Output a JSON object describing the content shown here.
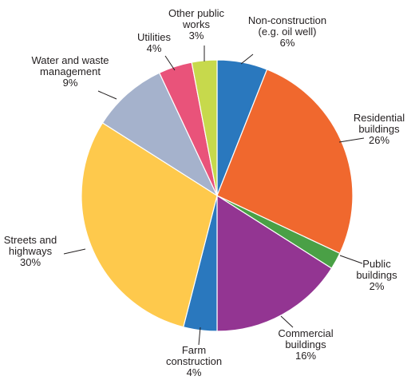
{
  "chart_data": {
    "type": "pie",
    "title": "",
    "start": "12 o'clock",
    "direction": "clockwise",
    "slices": [
      {
        "label": [
          "Non-construction",
          "(e.g. oil well)"
        ],
        "value_text": "6%",
        "value": 6,
        "color": "#2a78be"
      },
      {
        "label": [
          "Residential",
          "buildings"
        ],
        "value_text": "26%",
        "value": 26,
        "color": "#f0682e"
      },
      {
        "label": [
          "Public",
          "buildings"
        ],
        "value_text": "2%",
        "value": 2,
        "color": "#4aa046"
      },
      {
        "label": [
          "Commercial",
          "buildings"
        ],
        "value_text": "16%",
        "value": 16,
        "color": "#933592"
      },
      {
        "label": [
          "Farm",
          "construction"
        ],
        "value_text": "4%",
        "value": 4,
        "color": "#2a78be"
      },
      {
        "label": [
          "Streets and",
          "highways"
        ],
        "value_text": "30%",
        "value": 30,
        "color": "#fec94c"
      },
      {
        "label": [
          "Water and waste",
          "management"
        ],
        "value_text": "9%",
        "value": 9,
        "color": "#a5b2cc"
      },
      {
        "label": [
          "Utilities"
        ],
        "value_text": "4%",
        "value": 4,
        "color": "#e9537a"
      },
      {
        "label": [
          "Other public",
          "works"
        ],
        "value_text": "3%",
        "value": 3,
        "color": "#c7d94c"
      }
    ]
  }
}
